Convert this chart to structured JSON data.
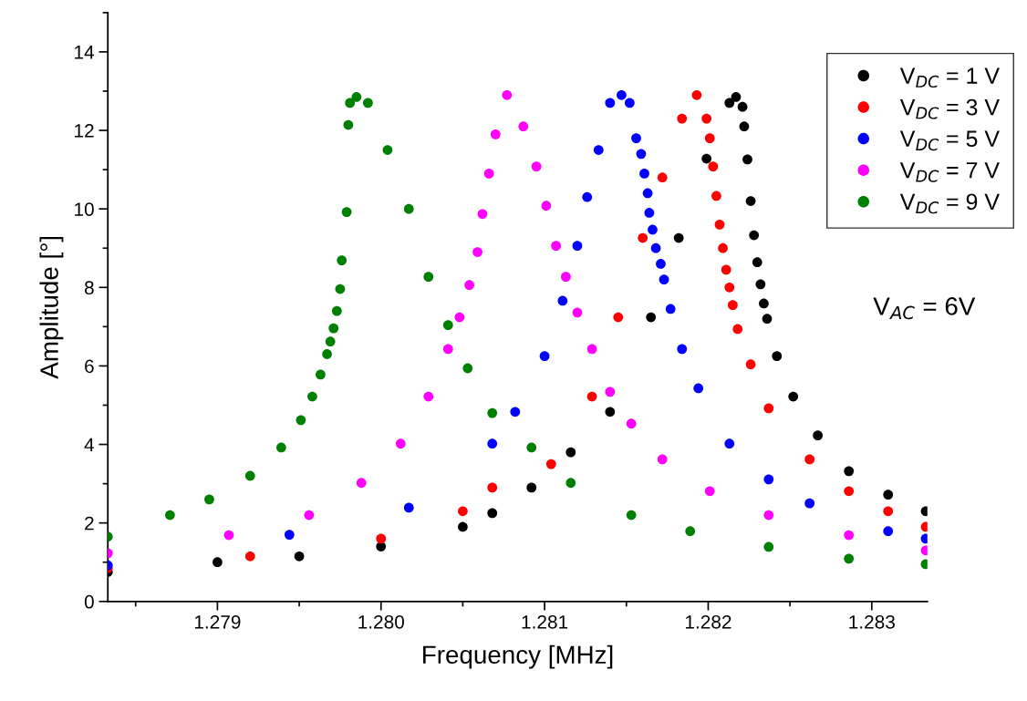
{
  "chart_data": {
    "type": "scatter",
    "xlabel": "Frequency [MHz]",
    "ylabel": "Amplitude [°]",
    "xlim": [
      1.27833,
      1.28334
    ],
    "ylim": [
      0,
      15
    ],
    "xticks": [
      1.279,
      {
        "value": 1.28,
        "label": "1.280"
      },
      1.281,
      1.282,
      1.283
    ],
    "yticks": [
      0,
      2,
      4,
      6,
      8,
      10,
      12,
      14
    ],
    "grid": false,
    "legend": "top right",
    "marker": "circle",
    "annotations": [
      "V$_{AC}$ = 6V"
    ],
    "series": [
      {
        "name": "V$_{DC}$ = 1 V",
        "color": "#000000",
        "x": [
          1.27833,
          1.279,
          1.2795,
          1.28,
          1.2805,
          1.28068,
          1.28092,
          1.28116,
          1.2814,
          1.28165,
          1.28182,
          1.28199,
          1.28213,
          1.28217,
          1.28221,
          1.28222,
          1.28224,
          1.28226,
          1.28228,
          1.2823,
          1.28232,
          1.28234,
          1.28236,
          1.28242,
          1.28252,
          1.28267,
          1.28286,
          1.2831,
          1.28333
        ],
        "values": [
          0.75,
          1.0,
          1.15,
          1.4,
          1.9,
          2.25,
          2.9,
          3.8,
          4.83,
          7.24,
          9.26,
          11.28,
          12.7,
          12.85,
          12.6,
          12.1,
          11.26,
          10.2,
          9.33,
          8.64,
          8.08,
          7.59,
          7.2,
          6.25,
          5.22,
          4.23,
          3.32,
          2.72,
          2.3
        ]
      },
      {
        "name": "V$_{DC}$ = 3 V",
        "color": "#ff0000",
        "x": [
          1.27833,
          1.2792,
          1.28,
          1.2805,
          1.28068,
          1.28104,
          1.28129,
          1.28145,
          1.2816,
          1.28172,
          1.28184,
          1.28193,
          1.28199,
          1.28201,
          1.28203,
          1.28205,
          1.28207,
          1.28209,
          1.28211,
          1.28213,
          1.28215,
          1.28218,
          1.28226,
          1.28237,
          1.28262,
          1.28286,
          1.2831,
          1.28333
        ],
        "values": [
          0.85,
          1.15,
          1.6,
          2.3,
          2.9,
          3.5,
          5.22,
          7.24,
          9.26,
          10.8,
          12.3,
          12.9,
          12.3,
          11.8,
          11.08,
          10.33,
          9.6,
          9.0,
          8.45,
          8.0,
          7.55,
          6.94,
          6.04,
          4.92,
          3.62,
          2.81,
          2.3,
          1.9
        ]
      },
      {
        "name": "V$_{DC}$ = 5 V",
        "color": "#0000ff",
        "x": [
          1.27833,
          1.27944,
          1.28017,
          1.28068,
          1.28082,
          1.281,
          1.28111,
          1.2812,
          1.28126,
          1.28133,
          1.2814,
          1.28147,
          1.28152,
          1.28156,
          1.28159,
          1.28161,
          1.28163,
          1.28164,
          1.28166,
          1.28168,
          1.28171,
          1.28173,
          1.28177,
          1.28184,
          1.28194,
          1.28213,
          1.28237,
          1.28262,
          1.2831,
          1.28333
        ],
        "values": [
          0.92,
          1.7,
          2.39,
          4.02,
          4.83,
          6.25,
          7.66,
          9.06,
          10.3,
          11.5,
          12.7,
          12.9,
          12.7,
          11.8,
          11.4,
          10.9,
          10.4,
          9.9,
          9.47,
          9.0,
          8.6,
          8.2,
          7.45,
          6.43,
          5.43,
          4.02,
          3.11,
          2.5,
          1.79,
          1.6
        ]
      },
      {
        "name": "V$_{DC}$ = 7 V",
        "color": "#ff00ff",
        "x": [
          1.27833,
          1.27907,
          1.27956,
          1.27988,
          1.28012,
          1.28029,
          1.28041,
          1.28048,
          1.28054,
          1.28059,
          1.28062,
          1.28066,
          1.2807,
          1.28077,
          1.28087,
          1.28095,
          1.28101,
          1.28107,
          1.28113,
          1.2812,
          1.28129,
          1.2814,
          1.28153,
          1.28172,
          1.28201,
          1.28237,
          1.28286,
          1.28333
        ],
        "values": [
          1.23,
          1.69,
          2.2,
          3.02,
          4.02,
          5.22,
          6.43,
          7.24,
          8.06,
          8.9,
          9.87,
          10.9,
          11.9,
          12.9,
          12.1,
          11.08,
          10.08,
          9.06,
          8.27,
          7.36,
          6.43,
          5.34,
          4.53,
          3.62,
          2.81,
          2.2,
          1.69,
          1.3
        ]
      },
      {
        "name": "V$_{DC}$ = 9 V",
        "color": "#008000",
        "x": [
          1.27833,
          1.27871,
          1.27895,
          1.2792,
          1.27939,
          1.27951,
          1.27958,
          1.27963,
          1.27967,
          1.27969,
          1.27971,
          1.27973,
          1.27975,
          1.27976,
          1.27979,
          1.2798,
          1.27981,
          1.27985,
          1.27992,
          1.28004,
          1.28017,
          1.28029,
          1.28041,
          1.28053,
          1.28068,
          1.28092,
          1.28116,
          1.28153,
          1.28189,
          1.28237,
          1.28286,
          1.28333
        ],
        "values": [
          1.65,
          2.2,
          2.6,
          3.2,
          3.92,
          4.62,
          5.22,
          5.78,
          6.3,
          6.62,
          6.96,
          7.4,
          7.96,
          8.69,
          9.92,
          12.14,
          12.7,
          12.85,
          12.7,
          11.5,
          10.0,
          8.27,
          7.04,
          5.94,
          4.8,
          3.92,
          3.02,
          2.2,
          1.79,
          1.39,
          1.09,
          0.95
        ]
      }
    ]
  }
}
